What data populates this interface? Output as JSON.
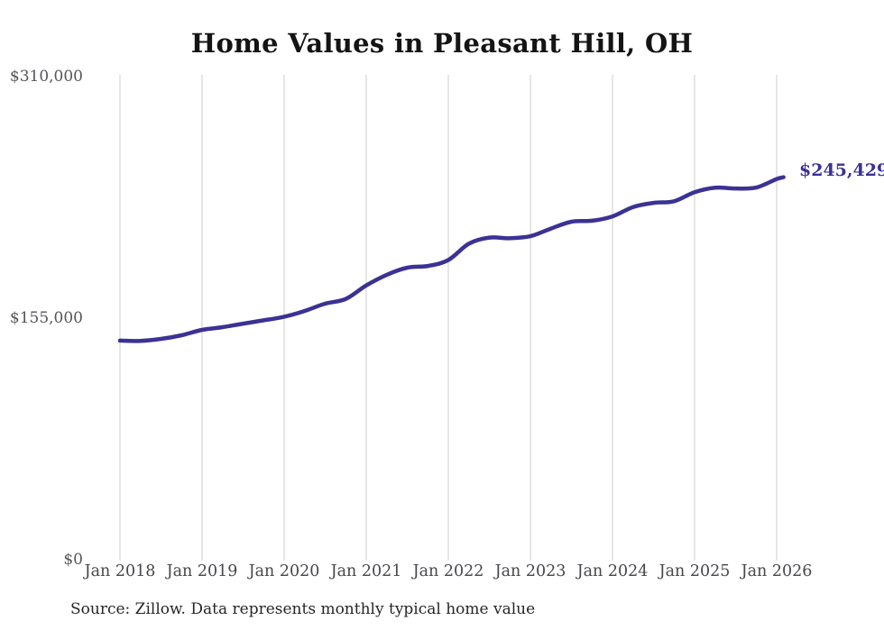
{
  "chart_data": {
    "type": "line",
    "title": "Home Values in Pleasant Hill, OH",
    "xlabel": "",
    "ylabel": "",
    "ylim": [
      0,
      310000
    ],
    "x_range": [
      "Jan 2018",
      "Feb 2026"
    ],
    "grid": "vertical-only",
    "legend": "none",
    "line_color": "#3a3294",
    "grid_color": "#cccccc",
    "background_color": "#ffffff",
    "y_ticks": [
      "$310,000",
      "$155,000",
      "$0"
    ],
    "x_ticks": [
      "Jan 2018",
      "Jan 2019",
      "Jan 2020",
      "Jan 2021",
      "Jan 2022",
      "Jan 2023",
      "Jan 2024",
      "Jan 2025",
      "Jan 2026"
    ],
    "end_label": "$245,429",
    "final_value": 245429,
    "source_note": "Source: Zillow. Data represents monthly typical home value",
    "series": [
      {
        "name": "Typical home value",
        "points": [
          {
            "month": "2018-01",
            "value": 140600
          },
          {
            "month": "2018-04",
            "value": 140400
          },
          {
            "month": "2018-07",
            "value": 141700
          },
          {
            "month": "2018-10",
            "value": 144000
          },
          {
            "month": "2019-01",
            "value": 147500
          },
          {
            "month": "2019-04",
            "value": 149200
          },
          {
            "month": "2019-07",
            "value": 151500
          },
          {
            "month": "2019-10",
            "value": 153600
          },
          {
            "month": "2020-01",
            "value": 155900
          },
          {
            "month": "2020-04",
            "value": 159600
          },
          {
            "month": "2020-07",
            "value": 164300
          },
          {
            "month": "2020-10",
            "value": 167300
          },
          {
            "month": "2021-01",
            "value": 176000
          },
          {
            "month": "2021-04",
            "value": 182800
          },
          {
            "month": "2021-07",
            "value": 187400
          },
          {
            "month": "2021-10",
            "value": 188500
          },
          {
            "month": "2022-01",
            "value": 192300
          },
          {
            "month": "2022-04",
            "value": 202800
          },
          {
            "month": "2022-07",
            "value": 206700
          },
          {
            "month": "2022-10",
            "value": 206300
          },
          {
            "month": "2023-01",
            "value": 207600
          },
          {
            "month": "2023-04",
            "value": 212500
          },
          {
            "month": "2023-07",
            "value": 216900
          },
          {
            "month": "2023-10",
            "value": 217500
          },
          {
            "month": "2024-01",
            "value": 220300
          },
          {
            "month": "2024-04",
            "value": 226300
          },
          {
            "month": "2024-07",
            "value": 229000
          },
          {
            "month": "2024-10",
            "value": 230000
          },
          {
            "month": "2025-01",
            "value": 235800
          },
          {
            "month": "2025-04",
            "value": 238700
          },
          {
            "month": "2025-07",
            "value": 238200
          },
          {
            "month": "2025-10",
            "value": 238800
          },
          {
            "month": "2026-01",
            "value": 244300
          },
          {
            "month": "2026-02",
            "value": 245429
          }
        ]
      }
    ]
  }
}
